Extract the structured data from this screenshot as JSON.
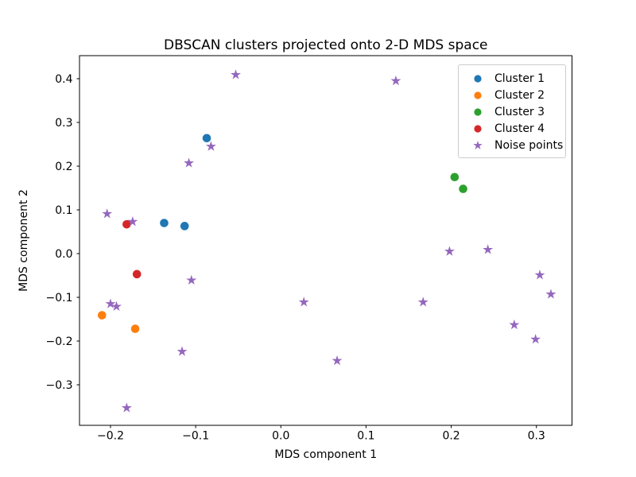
{
  "figure": {
    "background": "#ffffff",
    "text_color": "#000000",
    "spine_color": "#000000"
  },
  "chart_data": {
    "type": "scatter",
    "title": "DBSCAN clusters projected onto 2-D MDS space",
    "xlabel": "MDS component 1",
    "ylabel": "MDS component 2",
    "xlim": [
      -0.2364,
      0.3418
    ],
    "ylim": [
      -0.3927,
      0.4527
    ],
    "xticks": [
      -0.2,
      -0.1,
      0.0,
      0.1,
      0.2,
      0.3
    ],
    "xtick_labels": [
      "−0.2",
      "−0.1",
      "0.0",
      "0.1",
      "0.2",
      "0.3"
    ],
    "yticks": [
      -0.3,
      -0.2,
      -0.1,
      0.0,
      0.1,
      0.2,
      0.3,
      0.4
    ],
    "ytick_labels": [
      "−0.3",
      "−0.2",
      "−0.1",
      "0.0",
      "0.1",
      "0.2",
      "0.3",
      "0.4"
    ],
    "grid": false,
    "legend": {
      "position": "upper right",
      "border_color": "#cccccc",
      "background": "#ffffff"
    },
    "series": [
      {
        "name": "Cluster 1",
        "color": "#1f77b4",
        "marker": "circle",
        "points": [
          [
            -0.087,
            0.264
          ],
          [
            -0.137,
            0.07
          ],
          [
            -0.113,
            0.063
          ]
        ]
      },
      {
        "name": "Cluster 2",
        "color": "#ff7f0e",
        "marker": "circle",
        "points": [
          [
            -0.21,
            -0.141
          ],
          [
            -0.171,
            -0.172
          ]
        ]
      },
      {
        "name": "Cluster 3",
        "color": "#2ca02c",
        "marker": "circle",
        "points": [
          [
            0.204,
            0.175
          ],
          [
            0.214,
            0.148
          ]
        ]
      },
      {
        "name": "Cluster 4",
        "color": "#d62728",
        "marker": "circle",
        "points": [
          [
            -0.181,
            0.067
          ],
          [
            -0.169,
            -0.047
          ]
        ]
      },
      {
        "name": "Noise points",
        "color": "#9467bd",
        "marker": "star",
        "points": [
          [
            -0.053,
            0.409
          ],
          [
            0.135,
            0.395
          ],
          [
            -0.082,
            0.245
          ],
          [
            -0.108,
            0.207
          ],
          [
            -0.204,
            0.091
          ],
          [
            -0.174,
            0.073
          ],
          [
            0.198,
            0.005
          ],
          [
            0.243,
            0.009
          ],
          [
            -0.105,
            -0.061
          ],
          [
            0.304,
            -0.049
          ],
          [
            0.317,
            -0.093
          ],
          [
            0.027,
            -0.111
          ],
          [
            0.167,
            -0.111
          ],
          [
            -0.2,
            -0.115
          ],
          [
            -0.193,
            -0.121
          ],
          [
            0.274,
            -0.163
          ],
          [
            0.299,
            -0.196
          ],
          [
            -0.116,
            -0.224
          ],
          [
            0.066,
            -0.245
          ],
          [
            -0.181,
            -0.353
          ]
        ]
      }
    ]
  }
}
